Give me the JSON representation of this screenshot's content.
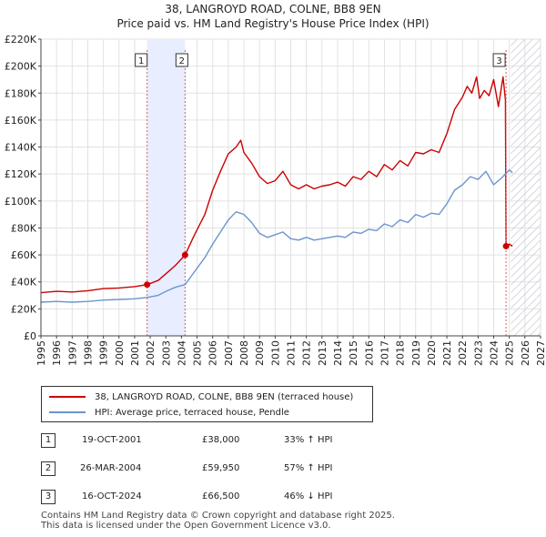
{
  "colors": {
    "price": "#cc0000",
    "hpi": "#6a95cc",
    "shade": "#e8eeff"
  },
  "chart_data": {
    "type": "line",
    "title": "38, LANGROYD ROAD, COLNE, BB8 9EN",
    "subtitle": "Price paid vs. HM Land Registry's House Price Index (HPI)",
    "xlim": [
      1995,
      2027
    ],
    "ylim": [
      0,
      220000
    ],
    "x_ticks": [
      "1995",
      "1996",
      "1997",
      "1998",
      "1999",
      "2000",
      "2001",
      "2002",
      "2003",
      "2004",
      "2005",
      "2006",
      "2007",
      "2008",
      "2009",
      "2010",
      "2011",
      "2012",
      "2013",
      "2014",
      "2015",
      "2016",
      "2017",
      "2018",
      "2019",
      "2020",
      "2021",
      "2022",
      "2023",
      "2024",
      "2025",
      "2026",
      "2027"
    ],
    "y_ticks": [
      {
        "value": 0,
        "label": "£0"
      },
      {
        "value": 20000,
        "label": "£20K"
      },
      {
        "value": 40000,
        "label": "£40K"
      },
      {
        "value": 60000,
        "label": "£60K"
      },
      {
        "value": 80000,
        "label": "£80K"
      },
      {
        "value": 100000,
        "label": "£100K"
      },
      {
        "value": 120000,
        "label": "£120K"
      },
      {
        "value": 140000,
        "label": "£140K"
      },
      {
        "value": 160000,
        "label": "£160K"
      },
      {
        "value": 180000,
        "label": "£180K"
      },
      {
        "value": 200000,
        "label": "£200K"
      },
      {
        "value": 220000,
        "label": "£220K"
      }
    ],
    "shaded_period": [
      2001.8,
      2004.23
    ],
    "future_hatch_from": 2025.1,
    "series": [
      {
        "name": "38, LANGROYD ROAD, COLNE, BB8 9EN (terraced house)",
        "color": "#cc0000",
        "x": [
          1995,
          1996,
          1997,
          1998,
          1999,
          2000,
          2001,
          2001.8,
          2002.5,
          2003,
          2003.6,
          2004.23,
          2004.8,
          2005.5,
          2006,
          2006.5,
          2007,
          2007.5,
          2007.8,
          2008,
          2008.5,
          2009,
          2009.5,
          2010,
          2010.5,
          2011,
          2011.5,
          2012,
          2012.5,
          2013,
          2013.5,
          2014,
          2014.5,
          2015,
          2015.5,
          2016,
          2016.5,
          2017,
          2017.5,
          2018,
          2018.5,
          2019,
          2019.5,
          2020,
          2020.5,
          2021,
          2021.5,
          2022,
          2022.3,
          2022.6,
          2022.9,
          2023.1,
          2023.4,
          2023.7,
          2024,
          2024.3,
          2024.6,
          2024.75,
          2024.79,
          2025,
          2025.2
        ],
        "y": [
          32000,
          33000,
          32500,
          33500,
          35000,
          35500,
          36500,
          38000,
          41000,
          46000,
          52000,
          59950,
          74000,
          90000,
          108000,
          122000,
          135000,
          140000,
          145000,
          136000,
          128000,
          118000,
          113000,
          115000,
          122000,
          112000,
          109000,
          112000,
          109000,
          111000,
          112000,
          114000,
          111000,
          118000,
          116000,
          122000,
          118000,
          127000,
          123000,
          130000,
          126000,
          136000,
          135000,
          138000,
          136000,
          150000,
          168000,
          177000,
          185000,
          180000,
          192000,
          176000,
          182000,
          178000,
          190000,
          170000,
          192000,
          175000,
          66500,
          68000,
          66500
        ]
      },
      {
        "name": "HPI: Average price, terraced house, Pendle",
        "color": "#6a95cc",
        "x": [
          1995,
          1996,
          1997,
          1998,
          1999,
          2000,
          2001,
          2001.8,
          2002.5,
          2003,
          2003.6,
          2004.23,
          2004.8,
          2005.5,
          2006,
          2006.5,
          2007,
          2007.5,
          2008,
          2008.5,
          2009,
          2009.5,
          2010,
          2010.5,
          2011,
          2011.5,
          2012,
          2012.5,
          2013,
          2013.5,
          2014,
          2014.5,
          2015,
          2015.5,
          2016,
          2016.5,
          2017,
          2017.5,
          2018,
          2018.5,
          2019,
          2019.5,
          2020,
          2020.5,
          2021,
          2021.5,
          2022,
          2022.5,
          2023,
          2023.5,
          2024,
          2024.5,
          2025,
          2025.2
        ],
        "y": [
          25000,
          25500,
          25000,
          25500,
          26500,
          27000,
          27500,
          28500,
          30000,
          33000,
          36000,
          38000,
          47000,
          58000,
          68000,
          77000,
          86000,
          92000,
          90000,
          84000,
          76000,
          73000,
          75000,
          77000,
          72000,
          71000,
          73000,
          71000,
          72000,
          73000,
          74000,
          73000,
          77000,
          76000,
          79000,
          78000,
          83000,
          81000,
          86000,
          84000,
          90000,
          88000,
          91000,
          90000,
          98000,
          108000,
          112000,
          118000,
          116000,
          122000,
          112000,
          117000,
          123000,
          121000
        ]
      }
    ],
    "transactions": [
      {
        "id": "1",
        "x": 2001.8,
        "y": 38000,
        "date": "19-OCT-2001",
        "price": "£38,000",
        "hpi": "33% ↑ HPI"
      },
      {
        "id": "2",
        "x": 2004.23,
        "y": 59950,
        "date": "26-MAR-2004",
        "price": "£59,950",
        "hpi": "57% ↑ HPI"
      },
      {
        "id": "3",
        "x": 2024.79,
        "y": 66500,
        "date": "16-OCT-2024",
        "price": "£66,500",
        "hpi": "46% ↓ HPI"
      }
    ]
  },
  "legend": {
    "price_label": "38, LANGROYD ROAD, COLNE, BB8 9EN (terraced house)",
    "hpi_label": "HPI: Average price, terraced house, Pendle"
  },
  "footer": {
    "line1": "Contains HM Land Registry data © Crown copyright and database right 2025.",
    "line2": "This data is licensed under the Open Government Licence v3.0."
  }
}
